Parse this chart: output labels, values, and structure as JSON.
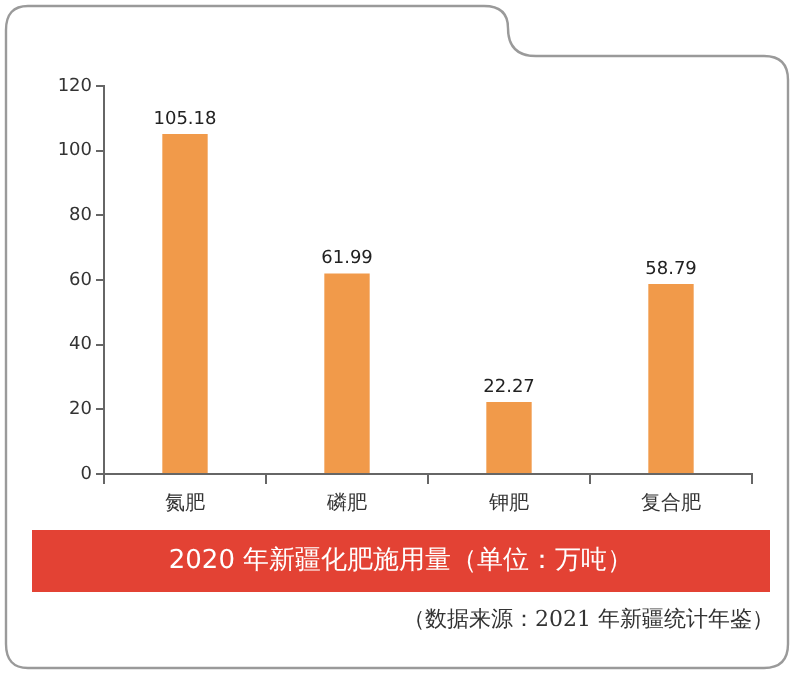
{
  "chart_data": {
    "type": "bar",
    "title": "2020 年新疆化肥施用量（单位：万吨）",
    "categories": [
      "氮肥",
      "磷肥",
      "钾肥",
      "复合肥"
    ],
    "values": [
      105.18,
      61.99,
      22.27,
      58.79
    ],
    "color": "#f19a4a",
    "ylim": [
      0,
      120
    ],
    "yticks": [
      0,
      20,
      40,
      60,
      80,
      100,
      120
    ],
    "data_labels": true,
    "annotations": [
      "（数据来源：2021 年新疆统计年鉴）"
    ]
  }
}
